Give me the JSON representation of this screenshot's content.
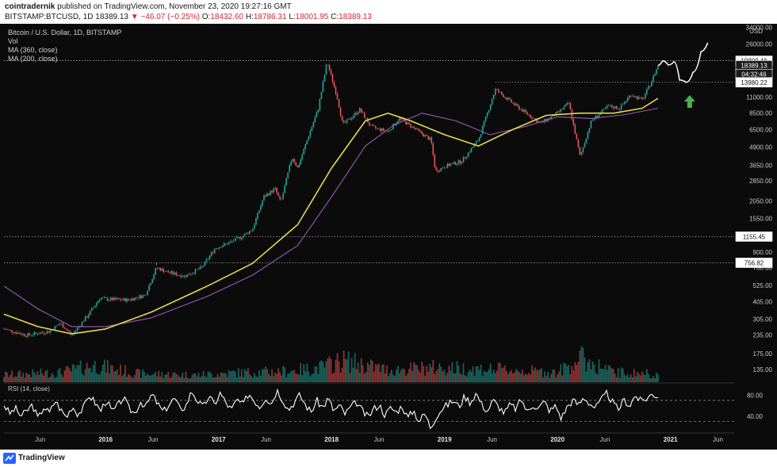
{
  "header": {
    "author": "cointradernik",
    "published": "published on TradingView.com, November 23, 2020 19:27:16 GMT",
    "symbol": "BITSTAMP:BTCUSD, 1D",
    "last": "18389.13",
    "change": "−46.07 (−0.25%)",
    "o_label": "O:",
    "o": "18432.60",
    "h_label": "H:",
    "h": "18786.31",
    "l_label": "L:",
    "l": "18001.95",
    "c_label": "C:",
    "c": "18389.13"
  },
  "legend": {
    "title": "Bitcoin / U.S. Dollar, 1D, BITSTAMP",
    "vol": "Vol",
    "ma360": "MA (360, close)",
    "ma200": "MA (200, close)",
    "rsi": "RSI (14, close)"
  },
  "footer": {
    "brand": "TradingView"
  },
  "colors": {
    "background": "#0b0b0b",
    "up": "#26a69a",
    "down": "#ef5350",
    "ma360": "#e8d84a",
    "ma200": "#9b59b6",
    "rsi": "#ffffff",
    "arrow": "#4caf50"
  },
  "chart_data": [
    {
      "type": "candlestick",
      "title": "Bitcoin / U.S. Dollar, 1D, BITSTAMP",
      "scale": "log",
      "y_unit": "USD",
      "y_ticks": [
        135,
        175,
        235,
        305,
        405,
        525,
        700,
        900,
        1550,
        2050,
        2850,
        3650,
        4900,
        6500,
        8500,
        11000,
        26000,
        34000
      ],
      "x_ticks": [
        "Jun",
        "2016",
        "Jun",
        "2017",
        "Jun",
        "2018",
        "Jun",
        "2019",
        "Jun",
        "2020",
        "Jun",
        "2021",
        "Jun"
      ],
      "x_tick_bold": [
        false,
        true,
        false,
        true,
        false,
        true,
        false,
        true,
        false,
        true,
        false,
        true,
        false
      ],
      "x_range": [
        2015.1,
        2021.55
      ],
      "ylim": [
        110,
        36000
      ],
      "price_labels": [
        {
          "value": 19809.46,
          "text": "19809.46",
          "style": "white"
        },
        {
          "value": 18389.13,
          "text": "18389.13",
          "style": "dark"
        },
        {
          "value": 16000,
          "text": "04:32:46",
          "style": "dark"
        },
        {
          "value": 13980.22,
          "text": "13980.22",
          "style": "white"
        },
        {
          "value": 1155.45,
          "text": "1155.45",
          "style": "white"
        },
        {
          "value": 756.82,
          "text": "756.82",
          "style": "white"
        }
      ],
      "horizontal_levels": [
        19809.46,
        1155.45,
        756.82,
        13980.22
      ],
      "price_path": [
        [
          2015.1,
          260
        ],
        [
          2015.3,
          235
        ],
        [
          2015.5,
          250
        ],
        [
          2015.6,
          285
        ],
        [
          2015.7,
          235
        ],
        [
          2015.85,
          330
        ],
        [
          2015.95,
          430
        ],
        [
          2016.0,
          420
        ],
        [
          2016.2,
          415
        ],
        [
          2016.35,
          450
        ],
        [
          2016.45,
          700
        ],
        [
          2016.55,
          650
        ],
        [
          2016.7,
          610
        ],
        [
          2016.85,
          700
        ],
        [
          2016.97,
          960
        ],
        [
          2017.1,
          1050
        ],
        [
          2017.2,
          1150
        ],
        [
          2017.3,
          1300
        ],
        [
          2017.4,
          2200
        ],
        [
          2017.5,
          2500
        ],
        [
          2017.55,
          2000
        ],
        [
          2017.65,
          4200
        ],
        [
          2017.7,
          3500
        ],
        [
          2017.8,
          6000
        ],
        [
          2017.88,
          9000
        ],
        [
          2017.96,
          19500
        ],
        [
          2018.05,
          11000
        ],
        [
          2018.1,
          7000
        ],
        [
          2018.25,
          9000
        ],
        [
          2018.35,
          6800
        ],
        [
          2018.5,
          6300
        ],
        [
          2018.6,
          7800
        ],
        [
          2018.75,
          6500
        ],
        [
          2018.88,
          5500
        ],
        [
          2018.92,
          3300
        ],
        [
          2019.0,
          3600
        ],
        [
          2019.15,
          3900
        ],
        [
          2019.3,
          5500
        ],
        [
          2019.45,
          12500
        ],
        [
          2019.6,
          10000
        ],
        [
          2019.75,
          8200
        ],
        [
          2019.85,
          7200
        ],
        [
          2020.0,
          8500
        ],
        [
          2020.1,
          10000
        ],
        [
          2020.2,
          4200
        ],
        [
          2020.3,
          7500
        ],
        [
          2020.45,
          9500
        ],
        [
          2020.55,
          9200
        ],
        [
          2020.65,
          11500
        ],
        [
          2020.75,
          10500
        ],
        [
          2020.82,
          13500
        ],
        [
          2020.89,
          18389
        ]
      ],
      "projection_path": [
        [
          2020.89,
          18389
        ],
        [
          2020.93,
          19800
        ],
        [
          2020.98,
          18500
        ],
        [
          2021.03,
          19500
        ],
        [
          2021.08,
          14500
        ],
        [
          2021.14,
          13980
        ],
        [
          2021.2,
          16500
        ],
        [
          2021.27,
          23000
        ],
        [
          2021.33,
          26500
        ]
      ],
      "ma360_path": [
        [
          2015.1,
          330
        ],
        [
          2015.4,
          270
        ],
        [
          2015.7,
          240
        ],
        [
          2016.0,
          260
        ],
        [
          2016.4,
          340
        ],
        [
          2016.9,
          520
        ],
        [
          2017.3,
          750
        ],
        [
          2017.7,
          1400
        ],
        [
          2018.0,
          3500
        ],
        [
          2018.3,
          7500
        ],
        [
          2018.5,
          8500
        ],
        [
          2018.7,
          7500
        ],
        [
          2019.0,
          6000
        ],
        [
          2019.3,
          5000
        ],
        [
          2019.6,
          6500
        ],
        [
          2019.9,
          8200
        ],
        [
          2020.2,
          8500
        ],
        [
          2020.5,
          8500
        ],
        [
          2020.75,
          9200
        ],
        [
          2020.89,
          10800
        ]
      ],
      "ma200_path": [
        [
          2015.1,
          520
        ],
        [
          2015.4,
          360
        ],
        [
          2015.7,
          270
        ],
        [
          2016.0,
          270
        ],
        [
          2016.4,
          310
        ],
        [
          2016.9,
          440
        ],
        [
          2017.3,
          620
        ],
        [
          2017.7,
          1000
        ],
        [
          2018.0,
          2200
        ],
        [
          2018.3,
          5000
        ],
        [
          2018.55,
          7000
        ],
        [
          2018.8,
          8500
        ],
        [
          2019.1,
          7500
        ],
        [
          2019.4,
          6000
        ],
        [
          2019.7,
          6800
        ],
        [
          2020.0,
          8000
        ],
        [
          2020.3,
          7800
        ],
        [
          2020.6,
          8300
        ],
        [
          2020.89,
          9200
        ]
      ],
      "volume_profile": [
        [
          2015.1,
          0.3
        ],
        [
          2015.6,
          0.4
        ],
        [
          2015.9,
          0.7
        ],
        [
          2016.3,
          0.35
        ],
        [
          2016.8,
          0.3
        ],
        [
          2017.2,
          0.4
        ],
        [
          2017.6,
          0.45
        ],
        [
          2017.9,
          0.6
        ],
        [
          2018.1,
          0.9
        ],
        [
          2018.5,
          0.5
        ],
        [
          2018.9,
          0.6
        ],
        [
          2019.3,
          0.55
        ],
        [
          2019.6,
          0.5
        ],
        [
          2020.0,
          0.4
        ],
        [
          2020.2,
          1.0
        ],
        [
          2020.5,
          0.4
        ],
        [
          2020.89,
          0.35
        ]
      ],
      "arrow": {
        "x": 2021.17,
        "y": 10000,
        "direction": "up"
      }
    },
    {
      "type": "line",
      "title": "RSI (14, close)",
      "y_ticks": [
        40,
        80
      ],
      "y_tick_labels": [
        "40.00",
        "80.00"
      ],
      "bands": [
        70,
        30
      ],
      "ylim": [
        10,
        100
      ],
      "series": [
        {
          "values": [
            62,
            45,
            55,
            40,
            50,
            62,
            35,
            58,
            46,
            70,
            52,
            38,
            60,
            44,
            56,
            80,
            66,
            50,
            72,
            48,
            60,
            76,
            54,
            46,
            68,
            58,
            82,
            64,
            48,
            62,
            74,
            52,
            60,
            88,
            70,
            56,
            78,
            62,
            84,
            66,
            52,
            72,
            60,
            84,
            70,
            58,
            76,
            64,
            90,
            72,
            52,
            66,
            80,
            62,
            48,
            70,
            56,
            74,
            50,
            60,
            44,
            58,
            66,
            50,
            38,
            54,
            62,
            42,
            56,
            48,
            60,
            36,
            52,
            30,
            46,
            18,
            40,
            54,
            62,
            70,
            58,
            78,
            66,
            84,
            62,
            50,
            70,
            58,
            46,
            62,
            54,
            72,
            48,
            62,
            56,
            68,
            50,
            60,
            36,
            58,
            70,
            62,
            76,
            64,
            56,
            70,
            84,
            66,
            52,
            72,
            60,
            80,
            68,
            74,
            82,
            78
          ]
        }
      ]
    }
  ]
}
